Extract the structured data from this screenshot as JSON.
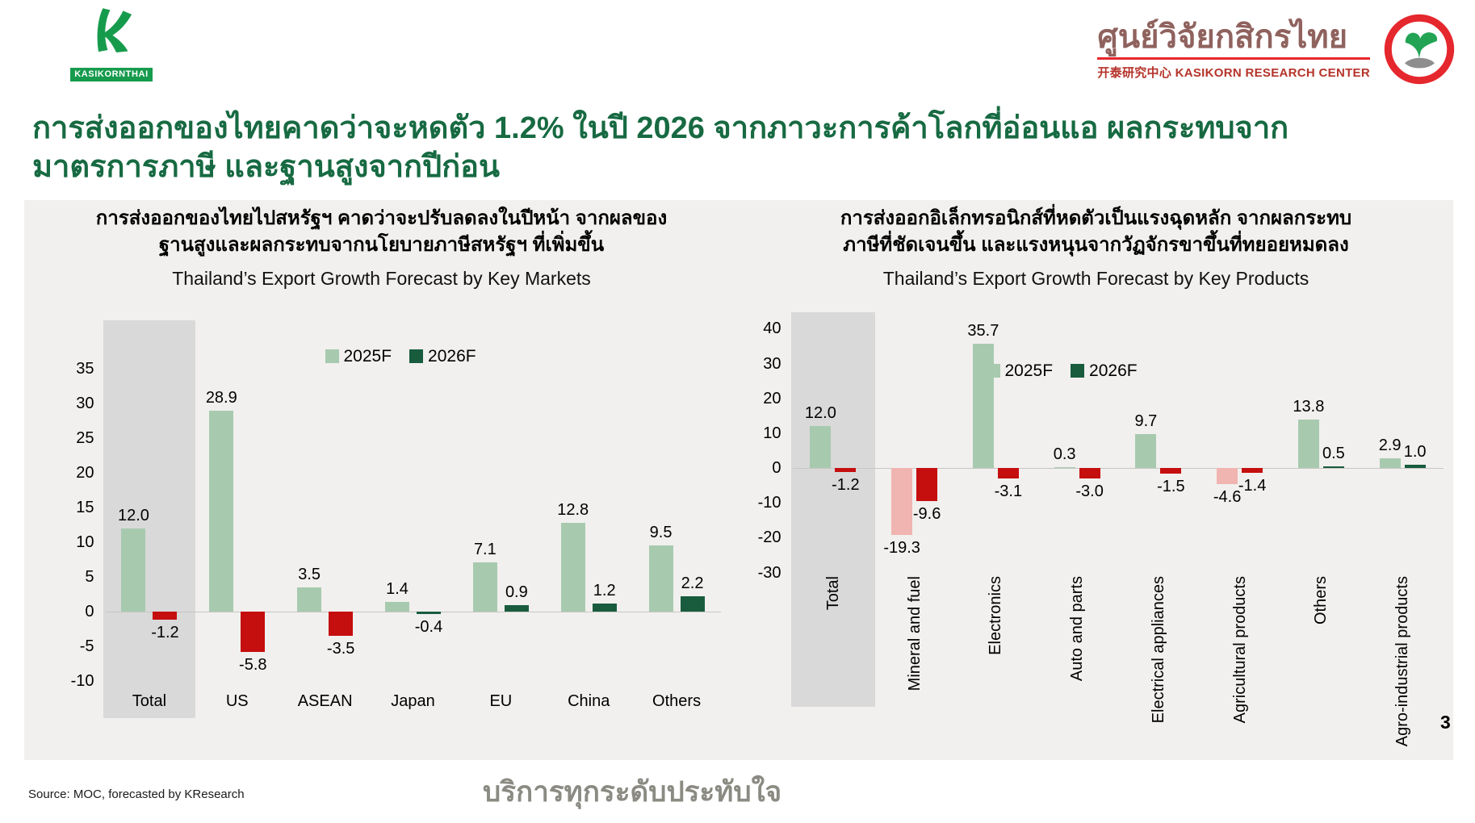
{
  "header": {
    "kbank": {
      "logo_text": "KASIKORNTHAI"
    },
    "krc": {
      "title_thai": "ศูนย์วิจัยกสิกรไทย",
      "subtitle": "开泰研究中心 KASIKORN RESEARCH CENTER"
    }
  },
  "title": {
    "line1": "การส่งออกของไทยคาดว่าจะหดตัว 1.2% ในปี 2026 จากภาวะการค้าโลกที่อ่อนแอ ผลกระทบจาก",
    "line2": "มาตรการภาษี และฐานสูงจากปีก่อน"
  },
  "colors": {
    "light_green_2025_positive": "#a7caae",
    "dark_green_2026_positive": "#185c3d",
    "red_2026_negative": "#c50e0e",
    "pink_2025_negative": "#f0b4b1",
    "title_green": "#176a42",
    "highlight_grey": "#d9d9d9",
    "panel_grey": "#f1f0ee"
  },
  "chart_data": [
    {
      "type": "bar",
      "title": "Thailand’s Export Growth Forecast by Key Markets",
      "subtitle_lines": [
        "การส่งออกของไทยไปสหรัฐฯ คาดว่าจะปรับลดลงในปีหน้า จากผลของ",
        "ฐานสูงและผลกระทบจากนโยบายภาษีสหรัฐฯ ที่เพิ่มขึ้น"
      ],
      "categories": [
        "Total",
        "US",
        "ASEAN",
        "Japan",
        "EU",
        "China",
        "Others"
      ],
      "series": [
        {
          "name": "2025F",
          "values": [
            12.0,
            28.9,
            3.5,
            1.4,
            7.1,
            12.8,
            9.5
          ],
          "colors": [
            "#a7caae",
            "#a7caae",
            "#a7caae",
            "#a7caae",
            "#a7caae",
            "#a7caae",
            "#a7caae"
          ]
        },
        {
          "name": "2026F",
          "values": [
            -1.2,
            -5.8,
            -3.5,
            -0.4,
            0.9,
            1.2,
            2.2
          ],
          "colors": [
            "#c50e0e",
            "#c50e0e",
            "#c50e0e",
            "#185c3d",
            "#185c3d",
            "#185c3d",
            "#185c3d"
          ]
        }
      ],
      "y_ticks": [
        35,
        30,
        25,
        20,
        15,
        10,
        5,
        0,
        -5,
        -10
      ],
      "ylim": [
        -13,
        40
      ],
      "legend": [
        {
          "label": "2025F",
          "color": "#a7caae"
        },
        {
          "label": "2026F",
          "color": "#185c3d"
        }
      ],
      "highlight_category": "Total",
      "grid": false,
      "legend_position": "inside-top-center"
    },
    {
      "type": "bar",
      "title": "Thailand’s Export Growth Forecast by Key Products",
      "subtitle_lines": [
        "การส่งออกอิเล็กทรอนิกส์ที่หดตัวเป็นแรงฉุดหลัก จากผลกระทบ",
        "ภาษีที่ชัดเจนขึ้น และแรงหนุนจากวัฏจักรขาขึ้นที่ทยอยหมดลง"
      ],
      "categories": [
        "Total",
        "Mineral and fuel",
        "Electronics",
        "Auto and parts",
        "Electrical appliances",
        "Agricultural products",
        "Others",
        "Agro-industrial products"
      ],
      "series": [
        {
          "name": "2025F",
          "values": [
            12.0,
            -19.3,
            35.7,
            0.3,
            9.7,
            -4.6,
            13.8,
            2.9
          ],
          "colors": [
            "#a7caae",
            "#f0b4b1",
            "#a7caae",
            "#a7caae",
            "#a7caae",
            "#f0b4b1",
            "#a7caae",
            "#a7caae"
          ]
        },
        {
          "name": "2026F",
          "values": [
            -1.2,
            -9.6,
            -3.1,
            -3.0,
            -1.5,
            -1.4,
            0.5,
            1.0
          ],
          "colors": [
            "#c50e0e",
            "#c50e0e",
            "#c50e0e",
            "#c50e0e",
            "#c50e0e",
            "#c50e0e",
            "#185c3d",
            "#185c3d"
          ]
        }
      ],
      "y_ticks": [
        40,
        30,
        20,
        10,
        0,
        -10,
        -20,
        -30
      ],
      "ylim": [
        -34,
        45
      ],
      "legend": [
        {
          "label": "2025F",
          "color": "#a7caae"
        },
        {
          "label": "2026F",
          "color": "#185c3d"
        }
      ],
      "highlight_category": "Total",
      "grid": false,
      "legend_position": "inside-upper-middle"
    }
  ],
  "footer": {
    "source": "Source: MOC, forecasted by KResearch",
    "slogan": "บริการทุกระดับประทับใจ",
    "page_number": "3"
  }
}
